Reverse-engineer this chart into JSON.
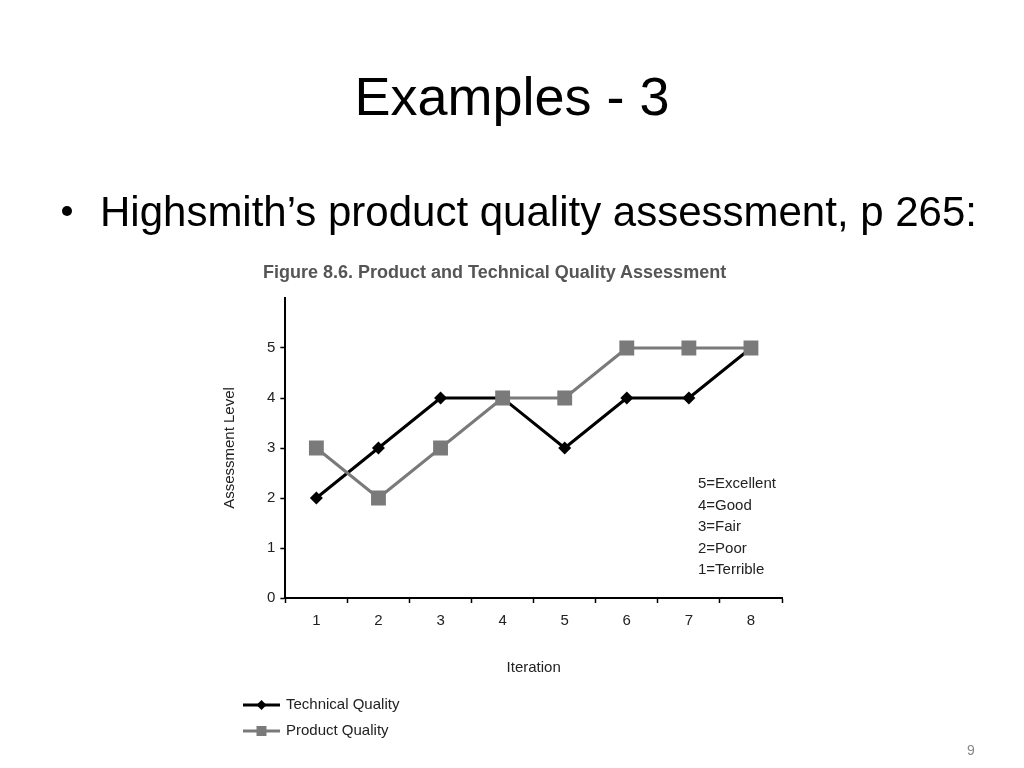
{
  "chart_data": {
    "type": "line",
    "title": "Examples - 3",
    "subtitle": "Highsmith’s product quality assessment, p 265:",
    "xlabel": "Iteration",
    "ylabel": "Assessment Level",
    "annotations": [
      "Figure 8.6. Product and Technical Quality Assessment",
      "5=Excellent",
      "4=Good",
      "3=Fair",
      "2=Poor",
      "1=Terrible",
      "9"
    ],
    "categories": [
      "1",
      "2",
      "3",
      "4",
      "5",
      "6",
      "7",
      "8"
    ],
    "series": [
      {
        "name": "Technical Quality",
        "color": "#000000",
        "marker": "diamond",
        "values": [
          2,
          3,
          4,
          4,
          3,
          4,
          4,
          5
        ]
      },
      {
        "name": "Product Quality",
        "color": "#7a7a7a",
        "marker": "square",
        "values": [
          3,
          2,
          3,
          4,
          4,
          5,
          5,
          5
        ]
      }
    ],
    "ylim": [
      0,
      6
    ],
    "yticks": [
      0,
      1,
      2,
      3,
      4,
      5
    ],
    "grid": false,
    "legend": "bottom left",
    "line_style": "solid"
  }
}
